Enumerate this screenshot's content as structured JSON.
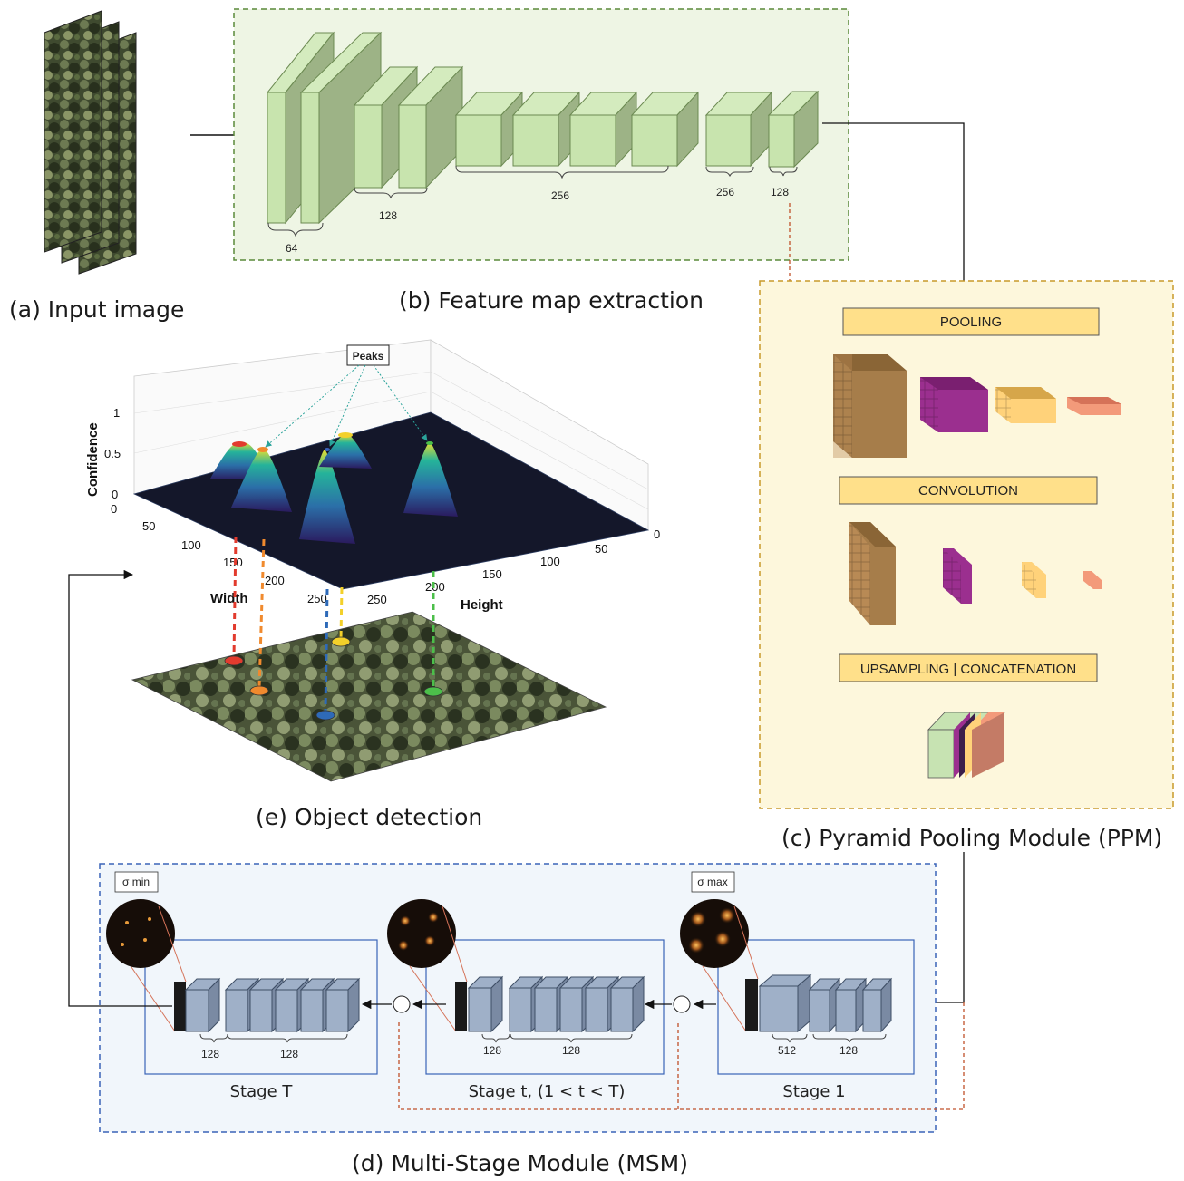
{
  "captions": {
    "input": "(a) Input image",
    "feature": "(b) Feature map extraction",
    "ppm": "(c) Pyramid Pooling Module (PPM)",
    "msm": "(d) Multi-Stage Module (MSM)",
    "detection": "(e) Object detection"
  },
  "backbone": {
    "labels": [
      "64",
      "128",
      "256",
      "256",
      "128"
    ]
  },
  "ppm": {
    "pooling": "POOLING",
    "convolution": "CONVOLUTION",
    "upsampling": "UPSAMPLING | CONCATENATION"
  },
  "msm": {
    "sigma_min": "σ min",
    "sigma_max": "σ max",
    "stageT": {
      "label": "Stage T",
      "dims": [
        "128",
        "128"
      ]
    },
    "stage_t": {
      "label": "Stage t, (1 < t < T)",
      "dims": [
        "128",
        "128"
      ]
    },
    "stage1": {
      "label": "Stage 1",
      "dims": [
        "512",
        "128"
      ]
    }
  },
  "plot": {
    "peaks_label": "Peaks",
    "z_label": "Confidence",
    "z_ticks": [
      "1",
      "0.5",
      "0"
    ],
    "width_label": "Width",
    "height_label": "Height",
    "width_ticks": [
      "0",
      "50",
      "100",
      "150",
      "200",
      "250"
    ],
    "height_ticks": [
      "0",
      "50",
      "100",
      "150",
      "200",
      "250"
    ]
  },
  "colors": {
    "feature_box": "#eef5e4",
    "feature_border": "#5a8a3a",
    "ppm_box": "#fdf7dc",
    "ppm_border": "#c89a2a",
    "msm_box": "#f1f6fb",
    "msm_border": "#3a63b8",
    "skip_line": "#c0502a"
  }
}
